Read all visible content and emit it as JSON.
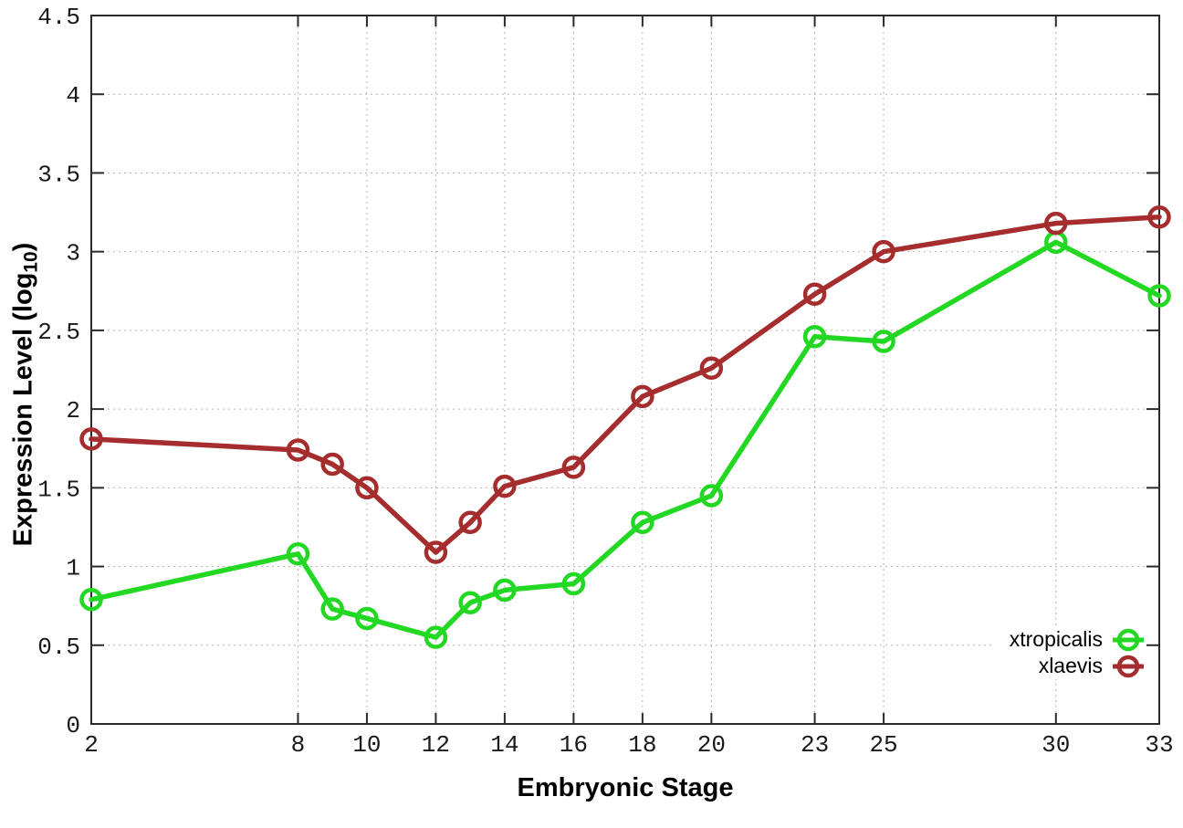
{
  "chart_data": {
    "type": "line",
    "title": "",
    "xlabel": "Embryonic Stage",
    "ylabel": "Expression Level (log10)",
    "ylabel_parts": {
      "main": "Expression Level (log",
      "sub": "10",
      "close": ")"
    },
    "x": [
      2,
      8,
      9,
      10,
      12,
      13,
      14,
      16,
      18,
      20,
      23,
      25,
      30,
      33
    ],
    "x_tick_labels": [
      2,
      8,
      10,
      12,
      14,
      16,
      18,
      20,
      23,
      25,
      30,
      33
    ],
    "y_ticks": [
      0,
      0.5,
      1,
      1.5,
      2,
      2.5,
      3,
      3.5,
      4,
      4.5
    ],
    "xlim": [
      2,
      33
    ],
    "ylim": [
      0,
      4.5
    ],
    "grid": true,
    "grid_style": "dotted",
    "legend_position": "inside-bottom-right",
    "series": [
      {
        "name": "xtropicalis",
        "color": "#22d822",
        "marker": "open-circle",
        "values": [
          0.79,
          1.08,
          0.73,
          0.67,
          0.55,
          0.77,
          0.85,
          0.89,
          1.28,
          1.45,
          2.46,
          2.43,
          3.06,
          2.72
        ]
      },
      {
        "name": "xlaevis",
        "color": "#a52d2d",
        "marker": "open-circle",
        "values": [
          1.81,
          1.74,
          1.65,
          1.5,
          1.09,
          1.28,
          1.51,
          1.63,
          2.08,
          2.26,
          2.73,
          3.0,
          3.18,
          3.22
        ]
      }
    ]
  }
}
